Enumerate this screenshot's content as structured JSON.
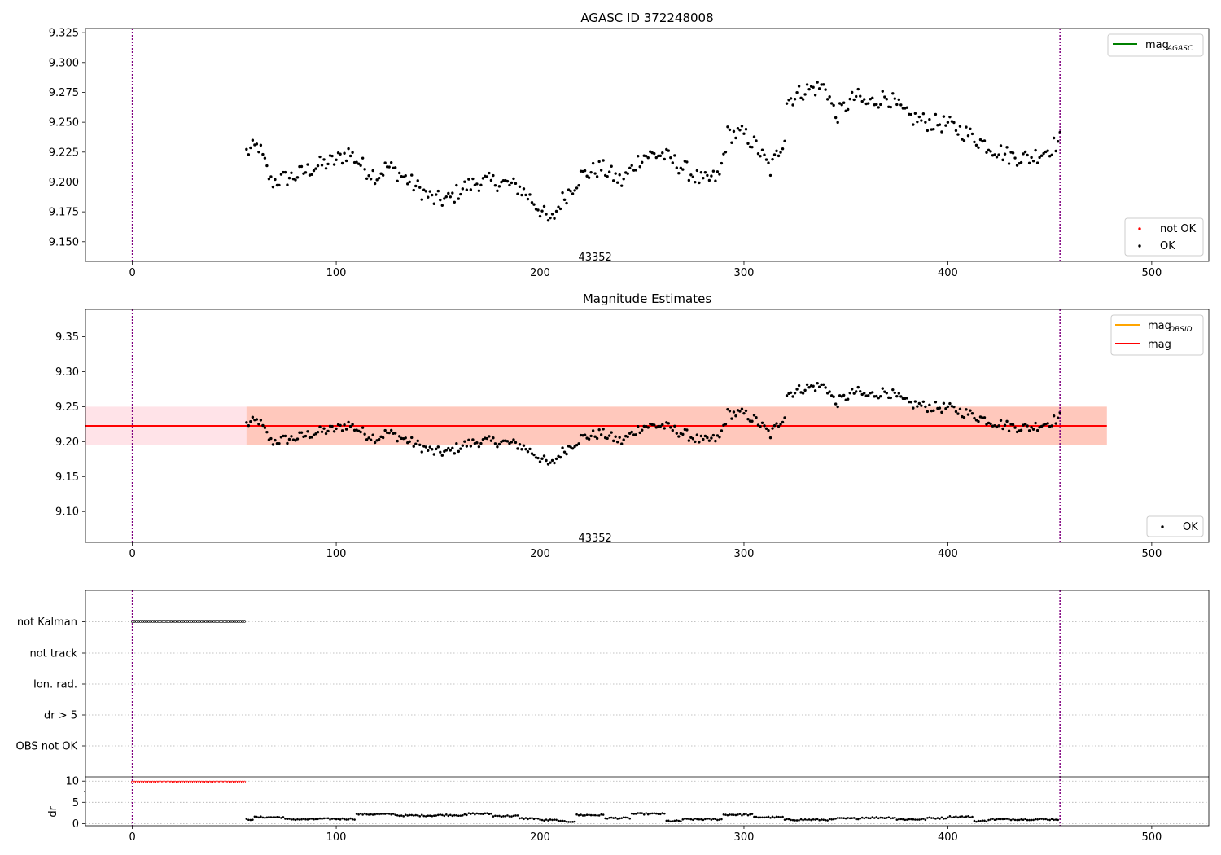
{
  "colors": {
    "ok": "#000000",
    "not_ok": "#ff0000",
    "agasc_line": "#008000",
    "obsid_line": "#ffa500",
    "mag_line": "#ff0000",
    "band_outer": "#ffc0cb",
    "band_inner": "#ffa07a",
    "vline": "#800080",
    "grid": "#b0b0b0"
  },
  "chart_data": [
    {
      "type": "scatter",
      "title": "AGASC ID 372248008",
      "xlabel": "",
      "ylabel": "",
      "xlim": [
        -23,
        528
      ],
      "ylim": [
        9.1335,
        9.3285
      ],
      "x_ticks": [
        0,
        100,
        200,
        300,
        400,
        500
      ],
      "y_ticks": [
        9.15,
        9.175,
        9.2,
        9.225,
        9.25,
        9.275,
        9.3,
        9.325
      ],
      "vlines": [
        0,
        455
      ],
      "obsid_label": {
        "text": "43352",
        "x": 227,
        "y": 9.137
      },
      "legend_top": {
        "position": "top-right",
        "entries": [
          {
            "name": "mag",
            "sub": "AGASC",
            "color": "#008000",
            "kind": "line"
          }
        ]
      },
      "legend_bottom": {
        "position": "bottom-right",
        "entries": [
          {
            "name": "not OK",
            "color": "#ff0000",
            "kind": "marker"
          },
          {
            "name": "OK",
            "color": "#000000",
            "kind": "marker"
          }
        ]
      },
      "series": [
        {
          "name": "OK",
          "x_start": 56,
          "x_end": 455,
          "color": "#000000",
          "anchors": [
            [
              56,
              9.225
            ],
            [
              62,
              9.23
            ],
            [
              68,
              9.2
            ],
            [
              80,
              9.205
            ],
            [
              90,
              9.213
            ],
            [
              100,
              9.218
            ],
            [
              106,
              9.225
            ],
            [
              115,
              9.21
            ],
            [
              120,
              9.205
            ],
            [
              125,
              9.213
            ],
            [
              130,
              9.208
            ],
            [
              140,
              9.195
            ],
            [
              148,
              9.185
            ],
            [
              155,
              9.185
            ],
            [
              162,
              9.195
            ],
            [
              170,
              9.2
            ],
            [
              180,
              9.2
            ],
            [
              190,
              9.195
            ],
            [
              196,
              9.185
            ],
            [
              201,
              9.175
            ],
            [
              205,
              9.165
            ],
            [
              210,
              9.183
            ],
            [
              220,
              9.205
            ],
            [
              230,
              9.212
            ],
            [
              240,
              9.2
            ],
            [
              250,
              9.222
            ],
            [
              260,
              9.223
            ],
            [
              270,
              9.212
            ],
            [
              280,
              9.2
            ],
            [
              288,
              9.205
            ],
            [
              292,
              9.24
            ],
            [
              300,
              9.24
            ],
            [
              306,
              9.23
            ],
            [
              313,
              9.21
            ],
            [
              320,
              9.238
            ],
            [
              321,
              9.268
            ],
            [
              330,
              9.277
            ],
            [
              340,
              9.28
            ],
            [
              345,
              9.255
            ],
            [
              355,
              9.272
            ],
            [
              360,
              9.265
            ],
            [
              370,
              9.272
            ],
            [
              380,
              9.255
            ],
            [
              390,
              9.25
            ],
            [
              400,
              9.248
            ],
            [
              410,
              9.24
            ],
            [
              420,
              9.23
            ],
            [
              430,
              9.222
            ],
            [
              440,
              9.22
            ],
            [
              450,
              9.228
            ],
            [
              455,
              9.235
            ]
          ],
          "noise": 0.0075
        }
      ]
    },
    {
      "type": "scatter",
      "title": "Magnitude Estimates",
      "xlabel": "",
      "ylabel": "",
      "xlim": [
        -23,
        528
      ],
      "ylim": [
        9.056,
        9.389
      ],
      "x_ticks": [
        0,
        100,
        200,
        300,
        400,
        500
      ],
      "y_ticks": [
        9.1,
        9.15,
        9.2,
        9.25,
        9.3,
        9.35
      ],
      "vlines": [
        0,
        455
      ],
      "obsid_label": {
        "text": "43352",
        "x": 227,
        "y": 9.062
      },
      "mag": 9.2225,
      "band_outer": {
        "x": [
          -23,
          478
        ],
        "y": [
          9.195,
          9.25
        ]
      },
      "band_inner": {
        "x": [
          56,
          478
        ],
        "y": [
          9.195,
          9.25
        ]
      },
      "mag_line_x": [
        -23,
        478
      ],
      "legend_top": {
        "position": "top-right",
        "entries": [
          {
            "name": "mag",
            "sub": "OBSID",
            "color": "#ffa500",
            "kind": "line"
          },
          {
            "name": "mag",
            "sub": "",
            "color": "#ff0000",
            "kind": "line"
          }
        ]
      },
      "legend_bottom": {
        "position": "bottom-right",
        "entries": [
          {
            "name": "OK",
            "color": "#000000",
            "kind": "marker"
          }
        ]
      }
    },
    {
      "type": "scatter",
      "title": "",
      "xlim": [
        -23,
        528
      ],
      "x_ticks": [
        0,
        100,
        200,
        300,
        400,
        500
      ],
      "flag_labels": [
        "not Kalman",
        "not track",
        "Ion. rad.",
        "dr > 5",
        "OBS not OK"
      ],
      "flags": [
        {
          "label": "not Kalman",
          "x_start": 0,
          "x_end": 55
        }
      ],
      "vlines": [
        0,
        455
      ],
      "dr_ylabel": "dr",
      "dr_ylim": [
        -0.5,
        11
      ],
      "dr_ticks": [
        0,
        5,
        10
      ],
      "dr_red": {
        "x_start": 0,
        "x_end": 55,
        "value": 9.8
      },
      "dr_ok_segments": [
        [
          56,
          60,
          1.0
        ],
        [
          60,
          75,
          1.5
        ],
        [
          75,
          90,
          1.0
        ],
        [
          90,
          110,
          1.1
        ],
        [
          110,
          130,
          2.2
        ],
        [
          130,
          150,
          1.9
        ],
        [
          150,
          165,
          2.0
        ],
        [
          165,
          177,
          2.3
        ],
        [
          177,
          190,
          1.8
        ],
        [
          190,
          200,
          1.2
        ],
        [
          200,
          210,
          0.8
        ],
        [
          210,
          218,
          0.5
        ],
        [
          218,
          232,
          2.0
        ],
        [
          232,
          245,
          1.3
        ],
        [
          245,
          262,
          2.3
        ],
        [
          262,
          270,
          0.6
        ],
        [
          270,
          290,
          1.0
        ],
        [
          290,
          305,
          2.1
        ],
        [
          305,
          320,
          1.5
        ],
        [
          320,
          345,
          0.9
        ],
        [
          345,
          358,
          1.2
        ],
        [
          358,
          375,
          1.4
        ],
        [
          375,
          390,
          1.0
        ],
        [
          390,
          400,
          1.3
        ],
        [
          400,
          413,
          1.6
        ],
        [
          413,
          420,
          0.6
        ],
        [
          420,
          455,
          1.0
        ]
      ]
    }
  ]
}
